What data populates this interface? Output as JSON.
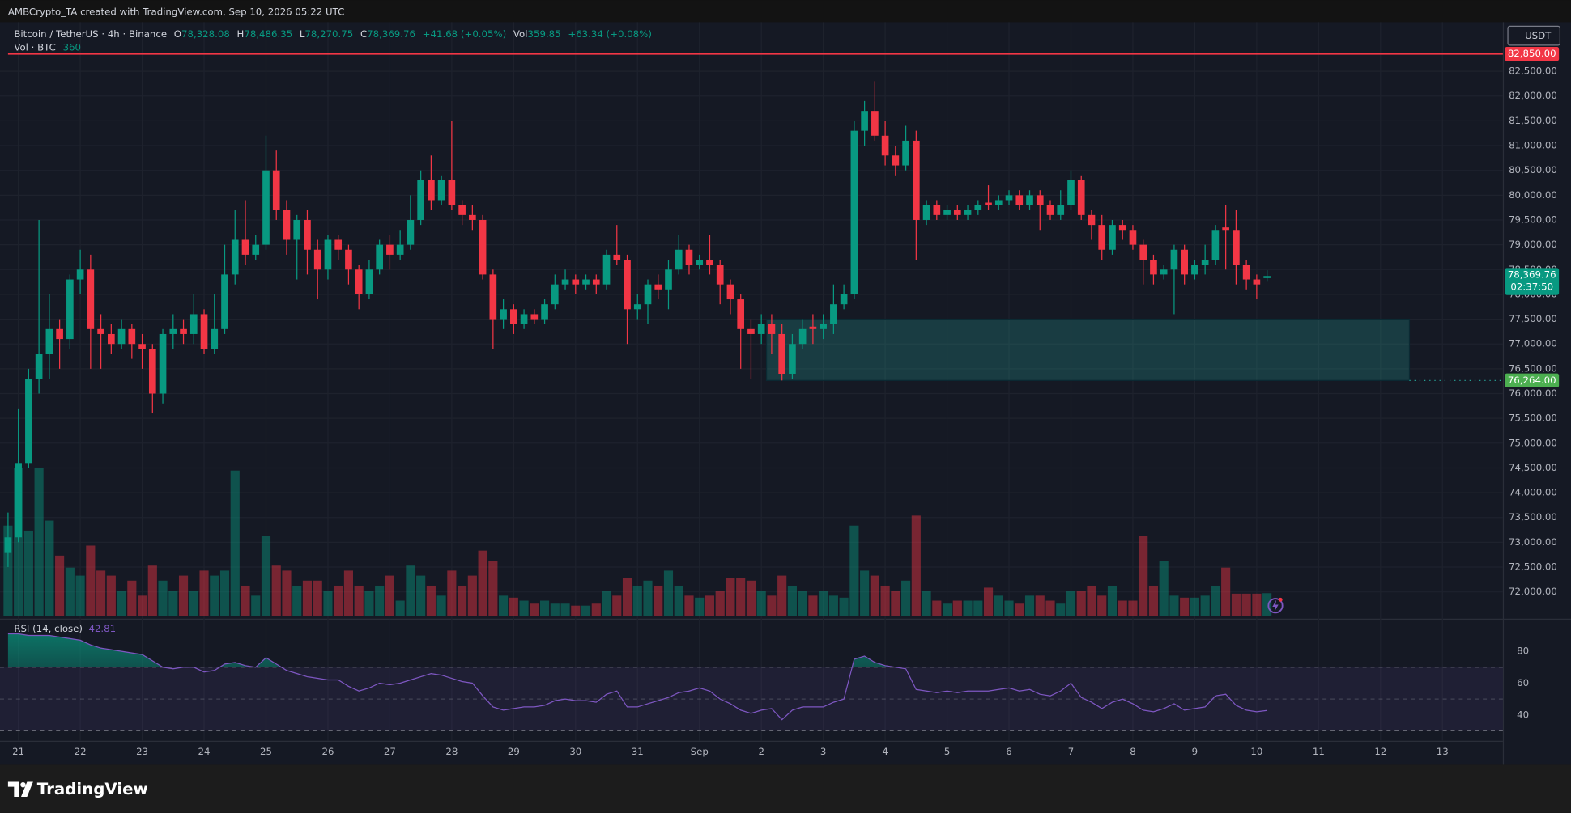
{
  "header": {
    "attribution": "AMBCrypto_TA created with TradingView.com, Sep 10, 2026 05:22 UTC",
    "symbol": "Bitcoin / TetherUS · 4h · Binance",
    "ohlc": [
      {
        "key": "O",
        "value": "78,328.08"
      },
      {
        "key": "H",
        "value": "78,486.35"
      },
      {
        "key": "L",
        "value": "78,270.75"
      },
      {
        "key": "C",
        "value": "78,369.76"
      }
    ],
    "change": "+41.68 (+0.05%)",
    "vol_key": "Vol",
    "vol_change": "+63.34 (+0.08%)",
    "vol_legend": "Vol · BTC",
    "vol_legend_value": "360",
    "currency": "USDT"
  },
  "chart_data": [
    {
      "type": "candlestick",
      "categories": [
        null,
        "21",
        null,
        null,
        null,
        null,
        null,
        "22",
        null,
        null,
        null,
        null,
        null,
        "23",
        null,
        null,
        null,
        null,
        null,
        "24",
        null,
        null,
        null,
        null,
        null,
        "25",
        null,
        null,
        null,
        null,
        null,
        "26",
        null,
        null,
        null,
        null,
        null,
        "27",
        null,
        null,
        null,
        null,
        null,
        "28",
        null,
        null,
        null,
        null,
        null,
        "29",
        null,
        null,
        null,
        null,
        null,
        "30",
        null,
        null,
        null,
        null,
        null,
        "31",
        null,
        null,
        null,
        null,
        null,
        "Sep",
        null,
        null,
        null,
        null,
        null,
        "2",
        null,
        null,
        null,
        null,
        null,
        "3",
        null,
        null,
        null,
        null,
        null,
        "4",
        null,
        null,
        null,
        null,
        null,
        "5",
        null,
        null,
        null,
        null,
        null,
        "6",
        null,
        null,
        null,
        null,
        null,
        "7",
        null,
        null,
        null,
        null,
        null,
        "8",
        null,
        null,
        null,
        null,
        null,
        "9",
        null,
        null,
        null,
        null,
        null,
        "10",
        null,
        null,
        null,
        null,
        null,
        "11",
        null,
        null,
        null,
        null,
        null,
        "12",
        null,
        null,
        null,
        null,
        null,
        "13",
        null,
        null,
        null,
        null,
        null
      ],
      "open": [
        72800,
        73100,
        74600,
        76300,
        76800,
        77300,
        77100,
        78300,
        78500,
        77300,
        77200,
        77000,
        77300,
        77000,
        76900,
        76000,
        77200,
        77300,
        77200,
        77600,
        76900,
        77300,
        78400,
        79100,
        78800,
        79000,
        80500,
        79700,
        79100,
        79500,
        78900,
        78500,
        79100,
        78900,
        78500,
        78000,
        78500,
        79000,
        78800,
        79000,
        79500,
        80300,
        79900,
        80300,
        79800,
        79600,
        79500,
        78400,
        77500,
        77700,
        77400,
        77600,
        77500,
        77800,
        78200,
        78300,
        78200,
        78300,
        78200,
        78800,
        78700,
        77700,
        77800,
        78200,
        78100,
        78500,
        78900,
        78600,
        78700,
        78600,
        78200,
        77900,
        77300,
        77200,
        77400,
        77200,
        76400,
        77000,
        77350,
        77300,
        77400,
        77800,
        78000,
        81300,
        81700,
        81200,
        80800,
        80600,
        81100,
        79500,
        79800,
        79600,
        79700,
        79600,
        79700,
        79850,
        79800,
        79900,
        80000,
        79800,
        80000,
        79800,
        79600,
        79800,
        80300,
        79600,
        79400,
        78900,
        79400,
        79300,
        79000,
        78700,
        78400,
        78500,
        78900,
        78400,
        78600,
        78700,
        79350,
        79300,
        78600,
        78300,
        78328.08,
        null,
        null,
        null,
        null,
        null,
        null,
        null,
        null,
        null,
        null,
        null,
        null,
        null,
        null,
        null,
        null,
        null,
        null,
        null,
        null,
        null,
        null
      ],
      "high": [
        73600,
        75700,
        76500,
        79500,
        78000,
        77500,
        78400,
        78900,
        78800,
        77600,
        77400,
        77500,
        77400,
        77200,
        77000,
        77300,
        77600,
        77500,
        78000,
        77700,
        78000,
        79000,
        79700,
        79900,
        79200,
        81200,
        80900,
        79900,
        79600,
        79700,
        79100,
        79200,
        79200,
        79000,
        78600,
        78700,
        79100,
        79200,
        79300,
        80000,
        80500,
        80800,
        80400,
        81500,
        79900,
        79800,
        79600,
        78500,
        77900,
        77800,
        77700,
        77700,
        77900,
        78400,
        78500,
        78400,
        78400,
        78400,
        78900,
        79400,
        78800,
        78000,
        78300,
        78400,
        78700,
        79200,
        79000,
        78800,
        79200,
        78700,
        78300,
        78000,
        77500,
        77600,
        77600,
        77400,
        77200,
        77500,
        77600,
        77600,
        78200,
        78200,
        81500,
        81900,
        82300,
        81500,
        81000,
        81400,
        81300,
        79900,
        79900,
        79800,
        79800,
        79800,
        79900,
        80200,
        80000,
        80100,
        80100,
        80100,
        80100,
        79900,
        80100,
        80500,
        80400,
        79700,
        79600,
        79500,
        79500,
        79400,
        79100,
        78800,
        78600,
        79000,
        79000,
        78700,
        79000,
        79400,
        79800,
        79700,
        78700,
        78400,
        78486.35,
        null,
        null,
        null,
        null,
        null,
        null,
        null,
        null,
        null,
        null,
        null,
        null,
        null,
        null,
        null,
        null,
        null,
        null,
        null,
        null,
        null,
        null
      ],
      "low": [
        72500,
        73000,
        74500,
        76000,
        76300,
        76500,
        76900,
        78000,
        76500,
        76500,
        76800,
        76900,
        76700,
        76500,
        75600,
        75800,
        76900,
        77000,
        77000,
        76800,
        76800,
        77200,
        78200,
        78600,
        78700,
        78900,
        79500,
        78800,
        78300,
        78400,
        77900,
        78300,
        78700,
        78200,
        77700,
        77900,
        78400,
        78500,
        78700,
        78900,
        79400,
        79700,
        79800,
        79700,
        79400,
        79300,
        78300,
        76900,
        77300,
        77200,
        77300,
        77400,
        77400,
        77700,
        78100,
        78000,
        78100,
        78000,
        78100,
        78600,
        77000,
        77500,
        77400,
        77900,
        77700,
        78400,
        78400,
        78500,
        78400,
        77800,
        77600,
        76500,
        76300,
        77000,
        76800,
        76264,
        76300,
        76900,
        77000,
        77100,
        77200,
        77700,
        77900,
        81000,
        81100,
        80600,
        80400,
        80500,
        78700,
        79400,
        79500,
        79500,
        79500,
        79500,
        79600,
        79700,
        79700,
        79800,
        79700,
        79700,
        79300,
        79500,
        79500,
        79700,
        79500,
        79100,
        78700,
        78800,
        79100,
        78900,
        78200,
        78200,
        78300,
        77600,
        78200,
        78300,
        78400,
        78600,
        78500,
        78200,
        78100,
        77900,
        78270.75,
        null,
        null,
        null,
        null,
        null,
        null,
        null,
        null,
        null,
        null,
        null,
        null,
        null,
        null,
        null,
        null,
        null,
        null,
        null,
        null,
        null,
        null
      ],
      "close": [
        73100,
        74600,
        76300,
        76800,
        77300,
        77100,
        78300,
        78500,
        77300,
        77200,
        77000,
        77300,
        77000,
        76900,
        76000,
        77200,
        77300,
        77200,
        77600,
        76900,
        77300,
        78400,
        79100,
        78800,
        79000,
        80500,
        79700,
        79100,
        79500,
        78900,
        78500,
        79100,
        78900,
        78500,
        78000,
        78500,
        79000,
        78800,
        79000,
        79500,
        80300,
        79900,
        80300,
        79800,
        79600,
        79500,
        78400,
        77500,
        77700,
        77400,
        77600,
        77500,
        77800,
        78200,
        78300,
        78200,
        78300,
        78200,
        78800,
        78700,
        77700,
        77800,
        78200,
        78100,
        78500,
        78900,
        78600,
        78700,
        78600,
        78200,
        77900,
        77300,
        77200,
        77400,
        77200,
        76400,
        77000,
        77300,
        77300,
        77400,
        77800,
        78000,
        81300,
        81700,
        81200,
        80800,
        80600,
        81100,
        79500,
        79800,
        79600,
        79700,
        79600,
        79700,
        79800,
        79800,
        79900,
        80000,
        79800,
        80000,
        79800,
        79600,
        79800,
        80300,
        79600,
        79400,
        78900,
        79400,
        79300,
        79000,
        78700,
        78400,
        78500,
        78900,
        78400,
        78600,
        78700,
        79300,
        79300,
        78600,
        78300,
        78200,
        78369.76,
        null,
        null,
        null,
        null,
        null,
        null,
        null,
        null,
        null,
        null,
        null,
        null,
        null,
        null,
        null,
        null,
        null,
        null,
        null,
        null,
        null,
        null
      ],
      "volume": [
        1440,
        2368,
        1360,
        2368,
        1520,
        960,
        768,
        640,
        1120,
        720,
        640,
        400,
        560,
        320,
        800,
        560,
        400,
        640,
        400,
        720,
        640,
        720,
        2320,
        480,
        320,
        1280,
        800,
        720,
        480,
        560,
        560,
        400,
        480,
        720,
        480,
        400,
        480,
        640,
        240,
        800,
        640,
        480,
        320,
        720,
        480,
        640,
        1040,
        880,
        320,
        288,
        240,
        192,
        240,
        192,
        192,
        160,
        160,
        192,
        400,
        320,
        608,
        480,
        560,
        480,
        720,
        480,
        320,
        288,
        320,
        400,
        608,
        608,
        560,
        400,
        320,
        640,
        480,
        400,
        320,
        400,
        320,
        288,
        1440,
        720,
        640,
        480,
        400,
        560,
        1600,
        400,
        240,
        192,
        240,
        240,
        240,
        448,
        320,
        240,
        192,
        320,
        320,
        240,
        192,
        400,
        400,
        480,
        320,
        480,
        240,
        240,
        1280,
        480,
        880,
        320,
        288,
        288,
        320,
        480,
        768,
        352,
        352,
        352,
        359.85,
        null,
        null,
        null,
        null,
        null,
        null,
        null,
        null,
        null,
        null,
        null,
        null,
        null,
        null,
        null,
        null,
        null,
        null,
        null,
        null,
        null,
        null
      ],
      "colors": {
        "up": "#089981",
        "down": "#f23645"
      },
      "ylim": [
        71480,
        83450
      ],
      "yticks": [
        {
          "value": 72000,
          "label": "72,000.00"
        },
        {
          "value": 72500,
          "label": "72,500.00"
        },
        {
          "value": 73000,
          "label": "73,000.00"
        },
        {
          "value": 73500,
          "label": "73,500.00"
        },
        {
          "value": 74000,
          "label": "74,000.00"
        },
        {
          "value": 74500,
          "label": "74,500.00"
        },
        {
          "value": 75000,
          "label": "75,000.00"
        },
        {
          "value": 75500,
          "label": "75,500.00"
        },
        {
          "value": 76000,
          "label": "76,000.00"
        },
        {
          "value": 76500,
          "label": "76,500.00"
        },
        {
          "value": 77000,
          "label": "77,000.00"
        },
        {
          "value": 77500,
          "label": "77,500.00"
        },
        {
          "value": 78000,
          "label": "78,000.00"
        },
        {
          "value": 78500,
          "label": "78,500.00"
        },
        {
          "value": 79000,
          "label": "79,000.00"
        },
        {
          "value": 79500,
          "label": "79,500.00"
        },
        {
          "value": 80000,
          "label": "80,000.00"
        },
        {
          "value": 80500,
          "label": "80,500.00"
        },
        {
          "value": 81000,
          "label": "81,000.00"
        },
        {
          "value": 81500,
          "label": "81,500.00"
        },
        {
          "value": 82000,
          "label": "82,000.00"
        },
        {
          "value": 82500,
          "label": "82,500.00"
        }
      ],
      "grid": true,
      "hline": {
        "value": 82850,
        "label": "82,850.00",
        "color": "#f23645"
      },
      "zone": {
        "x": [
          73.5,
          135.8
        ],
        "ylim": [
          76264,
          77500
        ],
        "label": "76,264.00",
        "color": "#26a69a"
      },
      "last_price": {
        "label": "78,369.76",
        "countdown": "02:37:50"
      }
    },
    {
      "type": "line",
      "title": "RSI (14, close)",
      "color": "#7e57c2",
      "values": [
        91,
        91,
        90,
        90,
        90,
        89,
        88,
        87,
        84,
        82,
        81,
        80,
        79,
        78,
        74,
        70,
        69,
        70,
        70,
        67,
        68,
        72,
        73,
        71,
        70,
        76,
        72,
        68,
        66,
        64,
        63,
        62,
        62,
        58,
        55,
        57,
        60,
        59,
        60,
        62,
        64,
        66,
        65,
        63,
        61,
        60,
        52,
        45,
        43,
        44,
        45,
        45,
        46,
        49,
        50,
        49,
        49,
        48,
        53,
        55,
        45,
        45,
        47,
        49,
        51,
        54,
        55,
        57,
        55,
        50,
        47,
        43,
        41,
        43,
        44,
        37,
        43,
        45,
        45,
        45,
        48,
        50,
        75,
        77,
        73,
        71,
        70,
        69,
        56,
        55,
        54,
        55,
        54,
        55,
        55,
        55,
        56,
        57,
        55,
        56,
        53,
        52,
        55,
        60,
        51,
        48,
        44,
        48,
        50,
        47,
        43,
        42,
        44,
        47,
        43,
        44,
        45,
        52,
        53,
        46,
        43,
        42,
        42.81,
        null,
        null,
        null,
        null,
        null,
        null,
        null,
        null,
        null,
        null,
        null,
        null,
        null,
        null,
        null,
        null,
        null,
        null,
        null,
        null,
        null,
        null
      ],
      "ylim": [
        25,
        98
      ],
      "yticks": [
        40,
        60,
        80
      ],
      "bands": [
        30,
        50,
        70
      ]
    }
  ],
  "footer": {
    "logo": "TradingView"
  }
}
